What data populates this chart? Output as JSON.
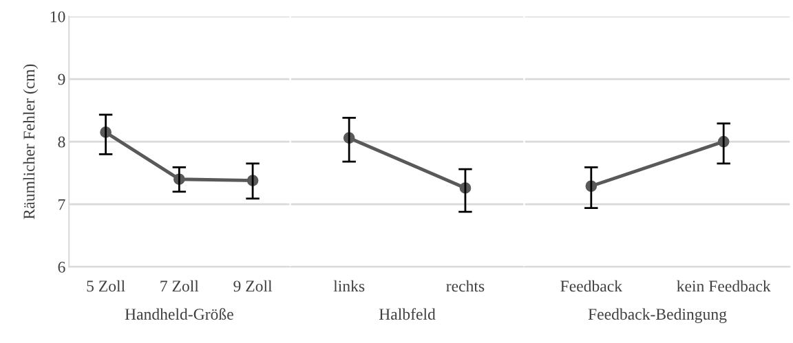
{
  "chart_data": [
    {
      "type": "line",
      "categories": [
        "5 Zoll",
        "7 Zoll",
        "9 Zoll"
      ],
      "xlabel": "Handheld-Größe",
      "ylabel": "Räumlicher Fehler (cm)",
      "ylim": [
        6,
        10
      ],
      "yticks": [
        6,
        7,
        8,
        9,
        10
      ],
      "grid": "y",
      "marker": "circle",
      "line_style": "solid",
      "series": [
        {
          "color": "#595959",
          "values": [
            8.15,
            7.4,
            7.38
          ],
          "errors": [
            [
              7.8,
              8.43
            ],
            [
              7.2,
              7.59
            ],
            [
              7.09,
              7.65
            ]
          ]
        }
      ]
    },
    {
      "type": "line",
      "categories": [
        "links",
        "rechts"
      ],
      "xlabel": "Halbfeld",
      "ylim": [
        6,
        10
      ],
      "yticks": [
        6,
        7,
        8,
        9,
        10
      ],
      "tick_labels": "x",
      "grid": "y",
      "marker": "circle",
      "line_style": "solid",
      "series": [
        {
          "color": "#595959",
          "values": [
            8.06,
            7.26
          ],
          "errors": [
            [
              7.68,
              8.38
            ],
            [
              6.88,
              7.56
            ]
          ]
        }
      ]
    },
    {
      "type": "line",
      "categories": [
        "Feedback",
        "kein Feedback"
      ],
      "xlabel": "Feedback-Bedingung",
      "ylim": [
        6,
        10
      ],
      "yticks": [
        6,
        7,
        8,
        9,
        10
      ],
      "tick_labels": "x",
      "grid": "y",
      "marker": "circle",
      "line_style": "solid",
      "series": [
        {
          "color": "#595959",
          "values": [
            7.29,
            8.0
          ],
          "errors": [
            [
              6.94,
              7.59
            ],
            [
              7.65,
              8.29
            ]
          ]
        }
      ]
    }
  ]
}
